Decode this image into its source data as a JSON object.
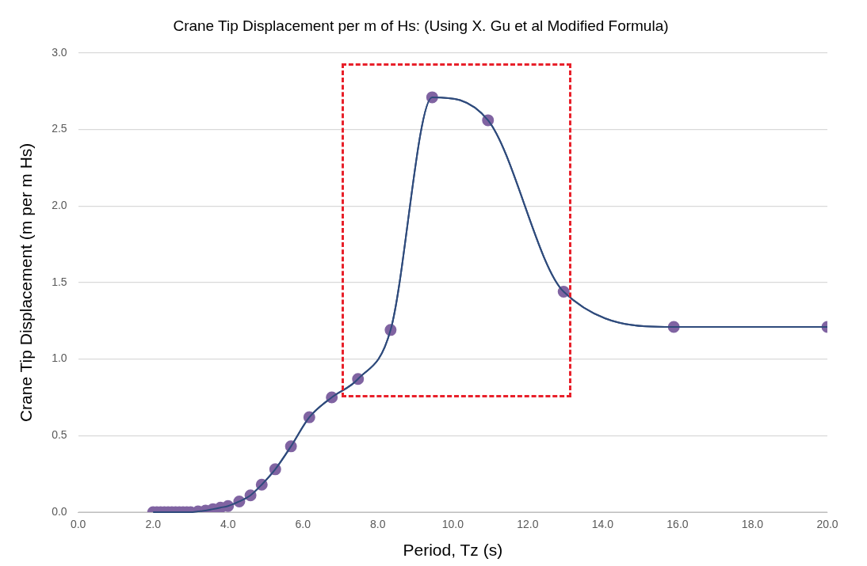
{
  "chart_data": {
    "type": "line",
    "title": "Crane Tip Displacement per m of Hs: (Using X. Gu et al Modified Formula)",
    "xlabel": "Period, Tz (s)",
    "ylabel": "Crane Tip Displacement (m per m Hs)",
    "x": [
      2.0,
      2.1,
      2.2,
      2.3,
      2.4,
      2.5,
      2.6,
      2.7,
      2.8,
      2.9,
      3.0,
      3.2,
      3.4,
      3.6,
      3.8,
      4.0,
      4.3,
      4.6,
      4.9,
      5.26,
      5.68,
      6.17,
      6.77,
      7.47,
      8.34,
      9.45,
      10.94,
      12.96,
      15.9,
      20.0
    ],
    "series": [
      {
        "color": "#2f4b7c",
        "colors": [
          "#8064a2",
          "#8064a2",
          "#8064a2",
          "#8064a2",
          "#8064a2",
          "#8064a2",
          "#8064a2",
          "#8064a2",
          "#8064a2",
          "#8064a2",
          "#8064a2",
          "#8064a2",
          "#8064a2",
          "#8064a2",
          "#8064a2",
          "#8064a2",
          "#8064a2",
          "#8064a2",
          "#8064a2",
          "#8064a2",
          "#8064a2",
          "#8064a2",
          "#8064a2",
          "#8064a2",
          "#8064a2",
          "#8064a2",
          "#8064a2",
          "#8064a2",
          "#8064a2",
          "#8064a2"
        ],
        "values": [
          0,
          0,
          0,
          0,
          0,
          0,
          0,
          0,
          0,
          0,
          0,
          0.005,
          0.01,
          0.02,
          0.03,
          0.04,
          0.07,
          0.11,
          0.18,
          0.28,
          0.43,
          0.62,
          0.75,
          0.87,
          1.19,
          2.71,
          2.56,
          1.44,
          1.21,
          1.21
        ]
      }
    ],
    "xlim": [
      0,
      20
    ],
    "xticks": [
      {
        "value": 0,
        "label": "0.0"
      },
      {
        "value": 2,
        "label": "2.0"
      },
      {
        "value": 4,
        "label": "4.0"
      },
      {
        "value": 6,
        "label": "6.0"
      },
      {
        "value": 8,
        "label": "8.0"
      },
      {
        "value": 10,
        "label": "10.0"
      },
      {
        "value": 12,
        "label": "12.0"
      },
      {
        "value": 14,
        "label": "14.0"
      },
      {
        "value": 16,
        "label": "16.0"
      },
      {
        "value": 18,
        "label": "18.0"
      },
      {
        "value": 20,
        "label": "20.0"
      }
    ],
    "ylim": [
      0,
      3
    ],
    "yticks": [
      {
        "value": 0,
        "label": "0.0"
      },
      {
        "value": 0.5,
        "label": "0.5"
      },
      {
        "value": 1,
        "label": "1.0"
      },
      {
        "value": 1.5,
        "label": "1.5"
      },
      {
        "value": 2,
        "label": "2.0"
      },
      {
        "value": 2.5,
        "label": "2.5"
      },
      {
        "value": 3,
        "label": "3.0"
      }
    ],
    "grid": "y",
    "marker": "circle",
    "line_style": "solid",
    "legend": false
  }
}
